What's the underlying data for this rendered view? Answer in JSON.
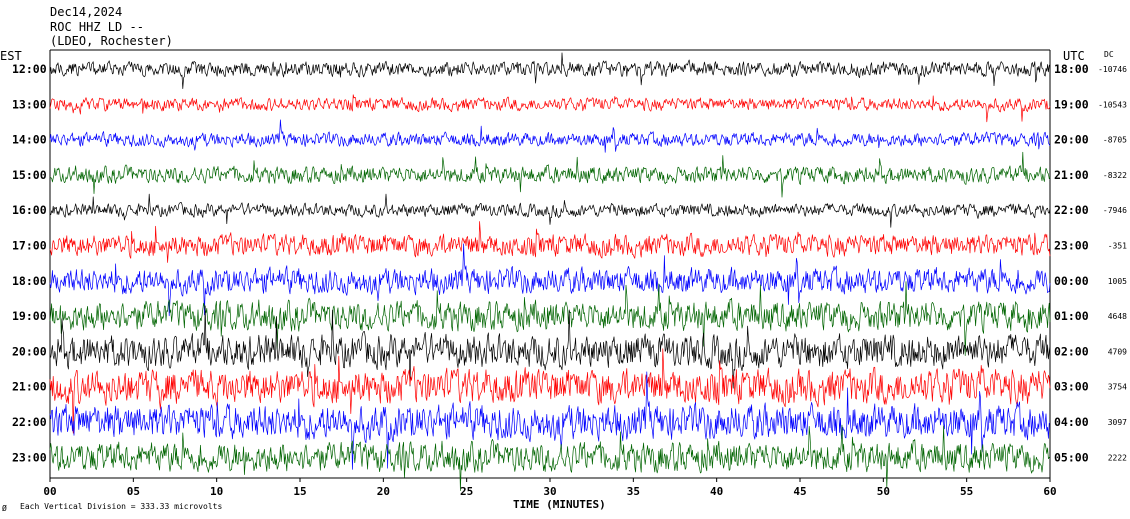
{
  "header": {
    "date": "Dec14,2024",
    "station": "ROC HHZ LD --",
    "location": "(LDEO, Rochester)"
  },
  "labels": {
    "left_tz": "EST",
    "right_tz": "UTC",
    "dc_header": "DC",
    "xlabel": "TIME (MINUTES)",
    "footnote": "Each Vertical Division =  333.33 microvolts",
    "corner_mark": "Ø"
  },
  "colors": {
    "axes": "#000000",
    "trace_cycle": [
      "#000000",
      "#ff0000",
      "#0000ff",
      "#006400"
    ]
  },
  "chart_data": {
    "type": "line",
    "chart_kind": "helicorder",
    "xlim": [
      0,
      60
    ],
    "x_ticks": [
      "00",
      "05",
      "10",
      "15",
      "20",
      "25",
      "30",
      "35",
      "40",
      "45",
      "50",
      "55",
      "60"
    ],
    "rows": [
      {
        "local": "12:00",
        "utc": "18:00",
        "dc": "-10746",
        "color": "#000000",
        "amplitude": 0.8
      },
      {
        "local": "13:00",
        "utc": "19:00",
        "dc": "-10543",
        "color": "#ff0000",
        "amplitude": 0.7
      },
      {
        "local": "14:00",
        "utc": "20:00",
        "dc": "-8705",
        "color": "#0000ff",
        "amplitude": 0.75
      },
      {
        "local": "15:00",
        "utc": "21:00",
        "dc": "-8322",
        "color": "#006400",
        "amplitude": 0.9
      },
      {
        "local": "16:00",
        "utc": "22:00",
        "dc": "-7946",
        "color": "#000000",
        "amplitude": 0.7
      },
      {
        "local": "17:00",
        "utc": "23:00",
        "dc": "-351",
        "color": "#ff0000",
        "amplitude": 1.2
      },
      {
        "local": "18:00",
        "utc": "00:00",
        "dc": "1005",
        "color": "#0000ff",
        "amplitude": 1.4
      },
      {
        "local": "19:00",
        "utc": "01:00",
        "dc": "4648",
        "color": "#006400",
        "amplitude": 1.6
      },
      {
        "local": "20:00",
        "utc": "02:00",
        "dc": "4709",
        "color": "#000000",
        "amplitude": 1.8
      },
      {
        "local": "21:00",
        "utc": "03:00",
        "dc": "3754",
        "color": "#ff0000",
        "amplitude": 1.9
      },
      {
        "local": "22:00",
        "utc": "04:00",
        "dc": "3097",
        "color": "#0000ff",
        "amplitude": 1.9
      },
      {
        "local": "23:00",
        "utc": "05:00",
        "dc": "2222",
        "color": "#006400",
        "amplitude": 1.6
      }
    ]
  }
}
